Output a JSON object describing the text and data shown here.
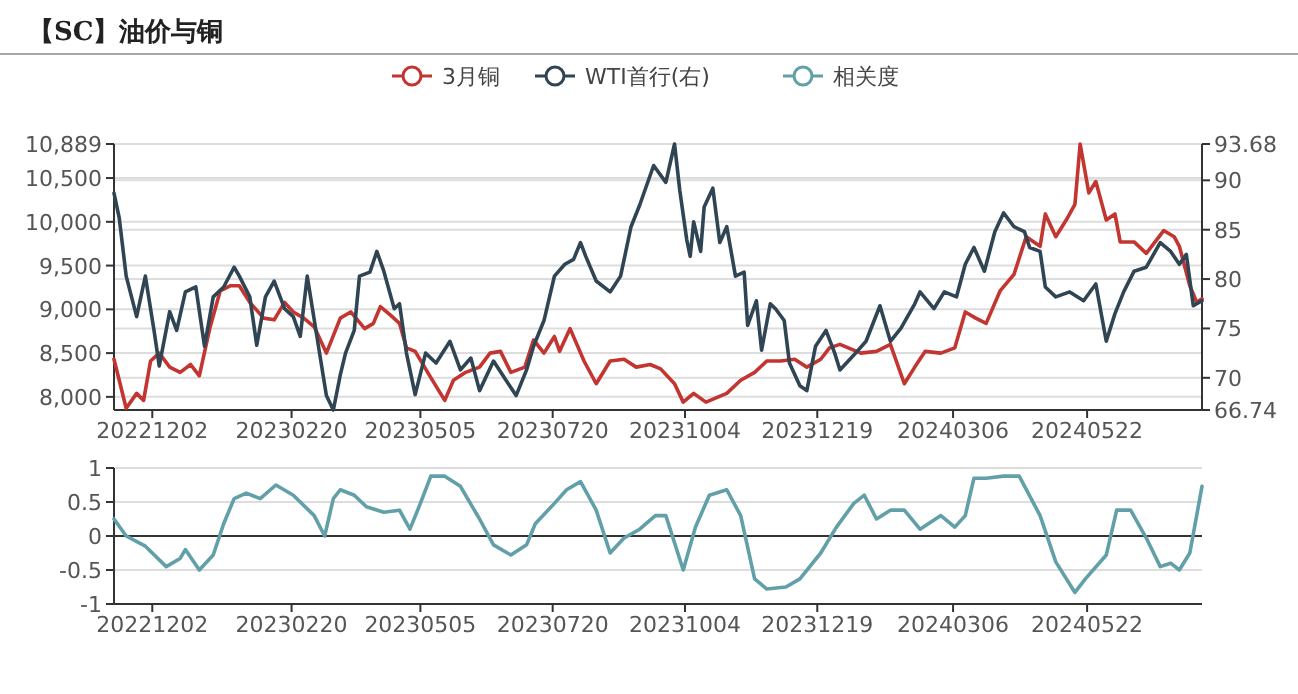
{
  "chart_data": [
    {
      "type": "line",
      "title": "【SC】油价与铜",
      "legend": "top",
      "grid": "y",
      "line_style": "solid",
      "xlim": [
        "2022-11-10",
        "2024-07-27"
      ],
      "xticks": [
        {
          "value": "2022-12-02",
          "label": "20221202"
        },
        {
          "value": "2023-02-20",
          "label": "20230220"
        },
        {
          "value": "2023-05-05",
          "label": "20230505"
        },
        {
          "value": "2023-07-20",
          "label": "20230720"
        },
        {
          "value": "2023-10-04",
          "label": "20231004"
        },
        {
          "value": "2023-12-19",
          "label": "20231219"
        },
        {
          "value": "2024-03-06",
          "label": "20240306"
        },
        {
          "value": "2024-05-22",
          "label": "20240522"
        }
      ],
      "ylim": [
        7850,
        10889
      ],
      "yticks": [
        {
          "value": 8000,
          "label": "8,000"
        },
        {
          "value": 8500,
          "label": "8,500"
        },
        {
          "value": 9000,
          "label": "9,000"
        },
        {
          "value": 9500,
          "label": "9,500"
        },
        {
          "value": 10000,
          "label": "10,000"
        },
        {
          "value": 10500,
          "label": "10,500"
        },
        {
          "value": 10889,
          "label": "10,889"
        }
      ],
      "y2lim": [
        66.74,
        93.68
      ],
      "y2ticks": [
        66.74,
        70,
        75,
        80,
        85,
        90,
        93.68
      ],
      "series": [
        {
          "name": "3月铜",
          "color": "#c23531",
          "x": [
            "2022-11-10",
            "2022-11-17",
            "2022-11-23",
            "2022-11-27",
            "2022-12-01",
            "2022-12-06",
            "2022-12-12",
            "2022-12-18",
            "2022-12-24",
            "2022-12-29",
            "2023-01-04",
            "2023-01-10",
            "2023-01-16",
            "2023-01-21",
            "2023-01-27",
            "2023-02-04",
            "2023-02-10",
            "2023-02-16",
            "2023-02-21",
            "2023-02-27",
            "2023-03-05",
            "2023-03-12",
            "2023-03-20",
            "2023-03-26",
            "2023-04-03",
            "2023-04-08",
            "2023-04-12",
            "2023-04-18",
            "2023-04-23",
            "2023-04-27",
            "2023-05-02",
            "2023-05-11",
            "2023-05-19",
            "2023-05-24",
            "2023-05-31",
            "2023-06-08",
            "2023-06-14",
            "2023-06-20",
            "2023-06-26",
            "2023-07-04",
            "2023-07-09",
            "2023-07-15",
            "2023-07-21",
            "2023-07-24",
            "2023-07-30",
            "2023-08-07",
            "2023-08-14",
            "2023-08-22",
            "2023-08-30",
            "2023-09-06",
            "2023-09-14",
            "2023-09-20",
            "2023-09-28",
            "2023-10-03",
            "2023-10-09",
            "2023-10-16",
            "2023-10-28",
            "2023-11-05",
            "2023-11-13",
            "2023-11-20",
            "2023-11-28",
            "2023-12-06",
            "2023-12-13",
            "2023-12-21",
            "2023-12-26",
            "2024-01-01",
            "2024-01-13",
            "2024-01-22",
            "2024-01-30",
            "2024-02-07",
            "2024-02-13",
            "2024-02-19",
            "2024-02-28",
            "2024-03-07",
            "2024-03-13",
            "2024-03-19",
            "2024-03-25",
            "2024-04-02",
            "2024-04-10",
            "2024-04-17",
            "2024-04-25",
            "2024-04-28",
            "2024-05-04",
            "2024-05-10",
            "2024-05-15",
            "2024-05-18",
            "2024-05-23",
            "2024-05-27",
            "2024-06-02",
            "2024-06-07",
            "2024-06-10",
            "2024-06-18",
            "2024-06-25",
            "2024-07-05",
            "2024-07-11",
            "2024-07-14",
            "2024-07-20",
            "2024-07-24",
            "2024-07-27"
          ],
          "values": [
            8430,
            7870,
            8040,
            7960,
            8410,
            8500,
            8340,
            8280,
            8370,
            8240,
            8780,
            9210,
            9270,
            9270,
            9080,
            8900,
            8880,
            9080,
            8970,
            8900,
            8800,
            8500,
            8900,
            8970,
            8780,
            8840,
            9030,
            8930,
            8840,
            8560,
            8520,
            8220,
            7960,
            8190,
            8280,
            8340,
            8500,
            8520,
            8280,
            8340,
            8650,
            8500,
            8690,
            8520,
            8780,
            8410,
            8150,
            8410,
            8430,
            8340,
            8370,
            8320,
            8150,
            7940,
            8040,
            7940,
            8040,
            8190,
            8280,
            8410,
            8410,
            8430,
            8340,
            8430,
            8560,
            8600,
            8500,
            8520,
            8600,
            8150,
            8340,
            8520,
            8500,
            8560,
            8970,
            8900,
            8840,
            9210,
            9400,
            9830,
            9720,
            10090,
            9830,
            10020,
            10200,
            10889,
            10330,
            10460,
            10020,
            10090,
            9770,
            9770,
            9640,
            9900,
            9830,
            9720,
            9270,
            9080,
            9120
          ]
        },
        {
          "name": "WTI首行(右)",
          "color": "#2f4554",
          "axis": "y2",
          "x": [
            "2022-11-10",
            "2022-11-13",
            "2022-11-17",
            "2022-11-23",
            "2022-11-28",
            "2022-12-03",
            "2022-12-06",
            "2022-12-12",
            "2022-12-16",
            "2022-12-21",
            "2022-12-27",
            "2023-01-01",
            "2023-01-06",
            "2023-01-12",
            "2023-01-18",
            "2023-01-21",
            "2023-01-27",
            "2023-01-31",
            "2023-02-05",
            "2023-02-10",
            "2023-02-16",
            "2023-02-21",
            "2023-02-25",
            "2023-03-01",
            "2023-03-06",
            "2023-03-12",
            "2023-03-16",
            "2023-03-20",
            "2023-03-23",
            "2023-03-28",
            "2023-03-31",
            "2023-04-06",
            "2023-04-10",
            "2023-04-14",
            "2023-04-20",
            "2023-04-23",
            "2023-04-27",
            "2023-05-02",
            "2023-05-08",
            "2023-05-14",
            "2023-05-22",
            "2023-05-28",
            "2023-06-03",
            "2023-06-08",
            "2023-06-16",
            "2023-06-23",
            "2023-06-29",
            "2023-07-05",
            "2023-07-09",
            "2023-07-15",
            "2023-07-21",
            "2023-07-27",
            "2023-08-01",
            "2023-08-05",
            "2023-08-08",
            "2023-08-14",
            "2023-08-22",
            "2023-08-28",
            "2023-09-03",
            "2023-09-08",
            "2023-09-16",
            "2023-09-23",
            "2023-09-28",
            "2023-10-01",
            "2023-10-05",
            "2023-10-07",
            "2023-10-09",
            "2023-10-13",
            "2023-10-15",
            "2023-10-20",
            "2023-10-24",
            "2023-10-28",
            "2023-11-02",
            "2023-11-07",
            "2023-11-09",
            "2023-11-14",
            "2023-11-17",
            "2023-11-22",
            "2023-11-25",
            "2023-11-30",
            "2023-12-03",
            "2023-12-09",
            "2023-12-13",
            "2023-12-18",
            "2023-12-24",
            "2023-12-29",
            "2024-01-01",
            "2024-01-09",
            "2024-01-16",
            "2024-01-24",
            "2024-01-30",
            "2024-02-05",
            "2024-02-13",
            "2024-02-16",
            "2024-02-24",
            "2024-03-01",
            "2024-03-08",
            "2024-03-13",
            "2024-03-18",
            "2024-03-24",
            "2024-03-30",
            "2024-04-04",
            "2024-04-10",
            "2024-04-16",
            "2024-04-19",
            "2024-04-25",
            "2024-04-28",
            "2024-05-04",
            "2024-05-12",
            "2024-05-20",
            "2024-05-27",
            "2024-06-02",
            "2024-06-07",
            "2024-06-12",
            "2024-06-18",
            "2024-06-25",
            "2024-07-03",
            "2024-07-09",
            "2024-07-14",
            "2024-07-18",
            "2024-07-22",
            "2024-07-27"
          ],
          "values": [
            88.7,
            86.2,
            80.3,
            76.2,
            80.3,
            74.8,
            71.2,
            76.7,
            74.8,
            78.7,
            79.2,
            73.2,
            78.2,
            79.2,
            81.2,
            80.3,
            78.2,
            73.3,
            78.2,
            79.8,
            77.0,
            76.2,
            74.2,
            80.3,
            74.8,
            68.2,
            66.74,
            70.3,
            72.5,
            74.8,
            80.3,
            80.7,
            82.8,
            80.8,
            77.0,
            77.5,
            72.5,
            68.3,
            72.5,
            71.5,
            73.7,
            70.8,
            72.0,
            68.7,
            71.7,
            69.8,
            68.2,
            70.8,
            73.2,
            75.8,
            80.3,
            81.5,
            82.0,
            83.7,
            82.3,
            79.8,
            78.7,
            80.3,
            85.3,
            87.5,
            91.5,
            89.8,
            93.68,
            89.0,
            84.0,
            82.3,
            85.8,
            82.8,
            87.3,
            89.2,
            83.7,
            85.3,
            80.3,
            80.7,
            75.3,
            77.8,
            72.8,
            77.5,
            77.0,
            75.8,
            71.5,
            69.2,
            68.7,
            73.2,
            74.8,
            72.5,
            70.8,
            72.3,
            73.7,
            77.3,
            73.7,
            75.0,
            77.5,
            78.7,
            77.0,
            78.7,
            78.2,
            81.5,
            83.2,
            80.8,
            84.8,
            86.7,
            85.3,
            84.8,
            83.2,
            82.8,
            79.2,
            78.2,
            78.7,
            77.8,
            79.5,
            73.7,
            76.5,
            78.7,
            80.8,
            81.2,
            83.7,
            82.8,
            81.5,
            82.5,
            77.3,
            77.8
          ]
        }
      ]
    },
    {
      "type": "line",
      "legend": "top",
      "grid": "y",
      "line_style": "solid",
      "xlim": [
        "2022-11-10",
        "2024-07-27"
      ],
      "xticks": [
        {
          "value": "2022-12-02",
          "label": "20221202"
        },
        {
          "value": "2023-02-20",
          "label": "20230220"
        },
        {
          "value": "2023-05-05",
          "label": "20230505"
        },
        {
          "value": "2023-07-20",
          "label": "20230720"
        },
        {
          "value": "2023-10-04",
          "label": "20231004"
        },
        {
          "value": "2023-12-19",
          "label": "20231219"
        },
        {
          "value": "2024-03-06",
          "label": "20240306"
        },
        {
          "value": "2024-05-22",
          "label": "20240522"
        }
      ],
      "ylim": [
        -1,
        1
      ],
      "yticks": [
        -1,
        -0.5,
        0,
        0.5,
        1
      ],
      "series": [
        {
          "name": "相关度",
          "color": "#61a0a8",
          "x": [
            "2022-11-10",
            "2022-11-17",
            "2022-11-28",
            "2022-12-10",
            "2022-12-18",
            "2022-12-21",
            "2022-12-29",
            "2023-01-06",
            "2023-01-12",
            "2023-01-18",
            "2023-01-25",
            "2023-02-02",
            "2023-02-11",
            "2023-02-21",
            "2023-03-05",
            "2023-03-11",
            "2023-03-16",
            "2023-03-20",
            "2023-03-28",
            "2023-04-04",
            "2023-04-14",
            "2023-04-23",
            "2023-04-29",
            "2023-05-05",
            "2023-05-11",
            "2023-05-19",
            "2023-05-28",
            "2023-06-08",
            "2023-06-16",
            "2023-06-26",
            "2023-07-05",
            "2023-07-10",
            "2023-07-21",
            "2023-07-28",
            "2023-08-05",
            "2023-08-14",
            "2023-08-22",
            "2023-08-30",
            "2023-09-08",
            "2023-09-17",
            "2023-09-23",
            "2023-10-03",
            "2023-10-10",
            "2023-10-18",
            "2023-10-28",
            "2023-11-05",
            "2023-11-13",
            "2023-11-20",
            "2023-12-01",
            "2023-12-09",
            "2023-12-21",
            "2023-12-30",
            "2024-01-09",
            "2024-01-15",
            "2024-01-22",
            "2024-01-30",
            "2024-02-07",
            "2024-02-16",
            "2024-02-28",
            "2024-03-07",
            "2024-03-13",
            "2024-03-18",
            "2024-03-25",
            "2024-04-04",
            "2024-04-13",
            "2024-04-25",
            "2024-05-04",
            "2024-05-15",
            "2024-05-21",
            "2024-06-02",
            "2024-06-08",
            "2024-06-16",
            "2024-06-25",
            "2024-07-03",
            "2024-07-09",
            "2024-07-14",
            "2024-07-20",
            "2024-07-27"
          ],
          "values": [
            0.25,
            0,
            -0.15,
            -0.45,
            -0.33,
            -0.2,
            -0.5,
            -0.28,
            0.18,
            0.55,
            0.63,
            0.55,
            0.75,
            0.6,
            0.3,
            0,
            0.55,
            0.68,
            0.6,
            0.43,
            0.35,
            0.38,
            0.1,
            0.48,
            0.88,
            0.88,
            0.73,
            0.25,
            -0.13,
            -0.28,
            -0.13,
            0.18,
            0.48,
            0.68,
            0.8,
            0.38,
            -0.25,
            -0.03,
            0.1,
            0.3,
            0.3,
            -0.5,
            0.13,
            0.6,
            0.68,
            0.3,
            -0.63,
            -0.78,
            -0.75,
            -0.63,
            -0.25,
            0.13,
            0.48,
            0.6,
            0.25,
            0.38,
            0.38,
            0.1,
            0.3,
            0.13,
            0.3,
            0.85,
            0.85,
            0.88,
            0.88,
            0.3,
            -0.38,
            -0.83,
            -0.63,
            -0.28,
            0.38,
            0.38,
            -0.03,
            -0.45,
            -0.4,
            -0.5,
            -0.25,
            0.73
          ]
        }
      ]
    }
  ]
}
